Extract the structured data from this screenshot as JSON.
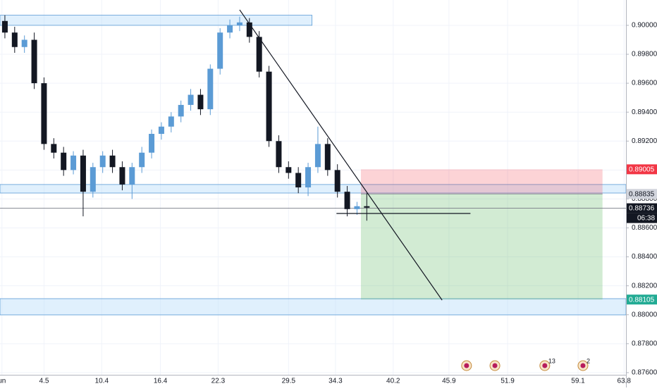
{
  "chart_data": {
    "type": "candlestick",
    "up_color": "#5b9bd5",
    "down_color": "#131722",
    "open": [
      0.9003,
      0.8995,
      0.8985,
      0.899,
      0.896,
      0.8918,
      0.8912,
      0.89,
      0.891,
      0.8885,
      0.8902,
      0.891,
      0.8902,
      0.889,
      0.8902,
      0.8912,
      0.8925,
      0.893,
      0.8937,
      0.8945,
      0.8952,
      0.8942,
      0.897,
      0.8995,
      0.9,
      0.9002,
      0.8992,
      0.8968,
      0.892,
      0.8902,
      0.8898,
      0.8888,
      0.8902,
      0.8918,
      0.89,
      0.8885,
      0.8873,
      0.8875
    ],
    "high": [
      0.9007,
      0.8999,
      0.8993,
      0.8995,
      0.8964,
      0.8922,
      0.8916,
      0.8913,
      0.8914,
      0.8905,
      0.8913,
      0.8914,
      0.8906,
      0.8905,
      0.8916,
      0.8928,
      0.8933,
      0.894,
      0.8948,
      0.8956,
      0.8956,
      0.8973,
      0.8998,
      0.9004,
      0.9006,
      0.9005,
      0.8996,
      0.8972,
      0.8924,
      0.8906,
      0.8902,
      0.8905,
      0.893,
      0.8922,
      0.8904,
      0.8889,
      0.8878,
      0.8884
    ],
    "low": [
      0.8991,
      0.8981,
      0.8981,
      0.8956,
      0.8914,
      0.8908,
      0.8896,
      0.8897,
      0.8868,
      0.8881,
      0.8898,
      0.8898,
      0.8886,
      0.888,
      0.8898,
      0.8908,
      0.8921,
      0.8926,
      0.8933,
      0.8941,
      0.8938,
      0.8938,
      0.8966,
      0.8991,
      0.8996,
      0.8988,
      0.8964,
      0.8916,
      0.8898,
      0.8894,
      0.8884,
      0.8882,
      0.8898,
      0.8896,
      0.8881,
      0.8868,
      0.8869,
      0.8865
    ],
    "close": [
      0.8995,
      0.8985,
      0.899,
      0.896,
      0.8918,
      0.8912,
      0.89,
      0.891,
      0.8885,
      0.8902,
      0.891,
      0.8902,
      0.889,
      0.8902,
      0.8912,
      0.8925,
      0.893,
      0.8937,
      0.8945,
      0.8952,
      0.8942,
      0.897,
      0.8995,
      0.9,
      0.9002,
      0.8992,
      0.8968,
      0.892,
      0.8902,
      0.8898,
      0.8888,
      0.8902,
      0.8918,
      0.89,
      0.8885,
      0.8873,
      0.8875,
      0.8874
    ],
    "xlim": [
      0,
      64
    ],
    "xticks": [
      {
        "value": 0.2,
        "label": "un"
      },
      4.5,
      10.4,
      16.4,
      22.3,
      29.5,
      34.3,
      40.2,
      45.9,
      51.9,
      59.1,
      63.8
    ],
    "ylim": [
      0.87585,
      0.90175
    ],
    "yticks": [
      {
        "value": 0.9,
        "label": "0.90000"
      },
      {
        "value": 0.898,
        "label": "0.89800"
      },
      {
        "value": 0.896,
        "label": "0.89600"
      },
      {
        "value": 0.894,
        "label": "0.89400"
      },
      {
        "value": 0.892,
        "label": "0.89200"
      },
      {
        "value": 0.89,
        "label": "0.89000"
      },
      {
        "value": 0.888,
        "label": "0.88800"
      },
      {
        "value": 0.886,
        "label": "0.88600"
      },
      {
        "value": 0.884,
        "label": "0.88400"
      },
      {
        "value": 0.882,
        "label": "0.88200"
      },
      {
        "value": 0.88,
        "label": "0.88000"
      },
      {
        "value": 0.878,
        "label": "0.87800"
      },
      {
        "value": 0.876,
        "label": "0.87600"
      }
    ],
    "grid": true,
    "zones": [
      {
        "top": 0.9007,
        "bottom": 0.9,
        "start": 0,
        "end": 31.9
      },
      {
        "top": 0.889,
        "bottom": 0.88841,
        "start": 0,
        "end": 64
      },
      {
        "top": 0.88111,
        "bottom": 0.87999,
        "start": 0,
        "end": 64
      }
    ],
    "position": {
      "stop": 0.89005,
      "entry": 0.88835,
      "target": 0.88105,
      "start": 36.9,
      "end": 61.6
    },
    "trendline": {
      "x": [
        24.5,
        45.2
      ],
      "y": [
        0.90107,
        0.88101
      ]
    },
    "support_line": {
      "price": 0.887,
      "start": 34.4,
      "end": 48.1
    },
    "last_price": 0.88736,
    "countdown": "06:38",
    "price_tags": [
      {
        "value": 0.89005,
        "color": "#f23645"
      },
      {
        "value": 0.88835,
        "color": "#d1d4dc"
      },
      {
        "value": 0.88105,
        "color": "#22ab94"
      }
    ],
    "events": [
      {
        "x": 47.7
      },
      {
        "x": 50.6
      },
      {
        "x": 55.7,
        "label": "13"
      },
      {
        "x": 59.6,
        "label": "2"
      }
    ]
  }
}
